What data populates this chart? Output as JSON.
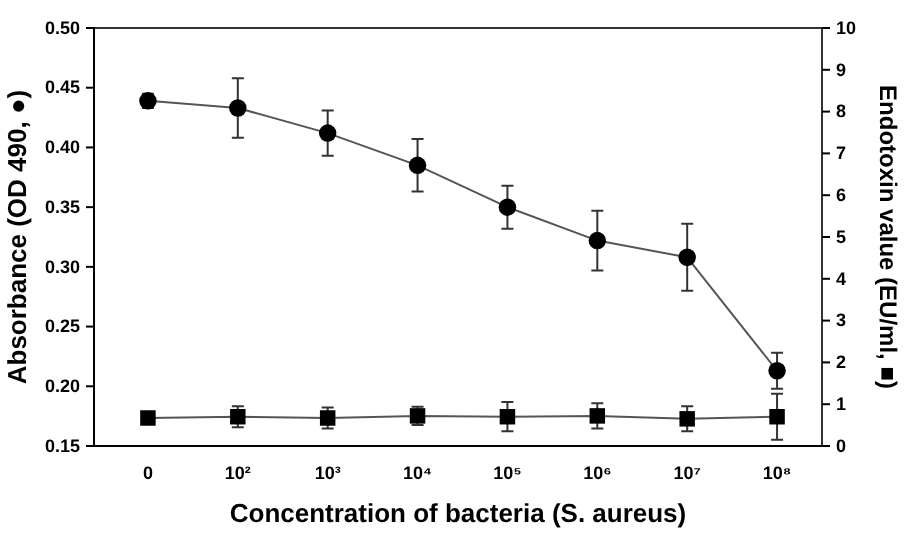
{
  "chart_data": {
    "type": "line",
    "xlabel": "Concentration of bacteria (S. aureus)",
    "ylabel": "Absorbance (OD 490, ●)",
    "y2label": "Endotoxin value (EU/ml, ■)",
    "categories": [
      "0",
      "10²",
      "10³",
      "10⁴",
      "10⁵",
      "10⁶",
      "10⁷",
      "10⁸"
    ],
    "series": [
      {
        "color": "#000000",
        "marker": "circle",
        "values": [
          0.439,
          0.433,
          0.412,
          0.385,
          0.35,
          0.322,
          0.308,
          0.213
        ],
        "errors": [
          0.006,
          0.025,
          0.019,
          0.022,
          0.018,
          0.025,
          0.028,
          0.015
        ]
      },
      {
        "color": "#000000",
        "marker": "square",
        "axis": "y2",
        "values": [
          0.67,
          0.7,
          0.67,
          0.72,
          0.7,
          0.72,
          0.65,
          0.7
        ],
        "errors": [
          null,
          0.25,
          0.25,
          0.22,
          0.35,
          0.3,
          0.3,
          0.55
        ]
      }
    ],
    "ylim": [
      0.15,
      0.5
    ],
    "yticks": [
      0.15,
      {
        "value": 0.2,
        "label": "0.20"
      },
      0.25,
      {
        "value": 0.3,
        "label": "0.30"
      },
      0.35,
      {
        "value": 0.4,
        "label": "0.40"
      },
      0.45,
      {
        "value": 0.5,
        "label": "0.50"
      }
    ],
    "y2lim": [
      0,
      10
    ],
    "y2ticks": [
      0,
      1,
      2,
      3,
      4,
      5,
      6,
      7,
      8,
      9,
      10
    ],
    "grid": false
  }
}
